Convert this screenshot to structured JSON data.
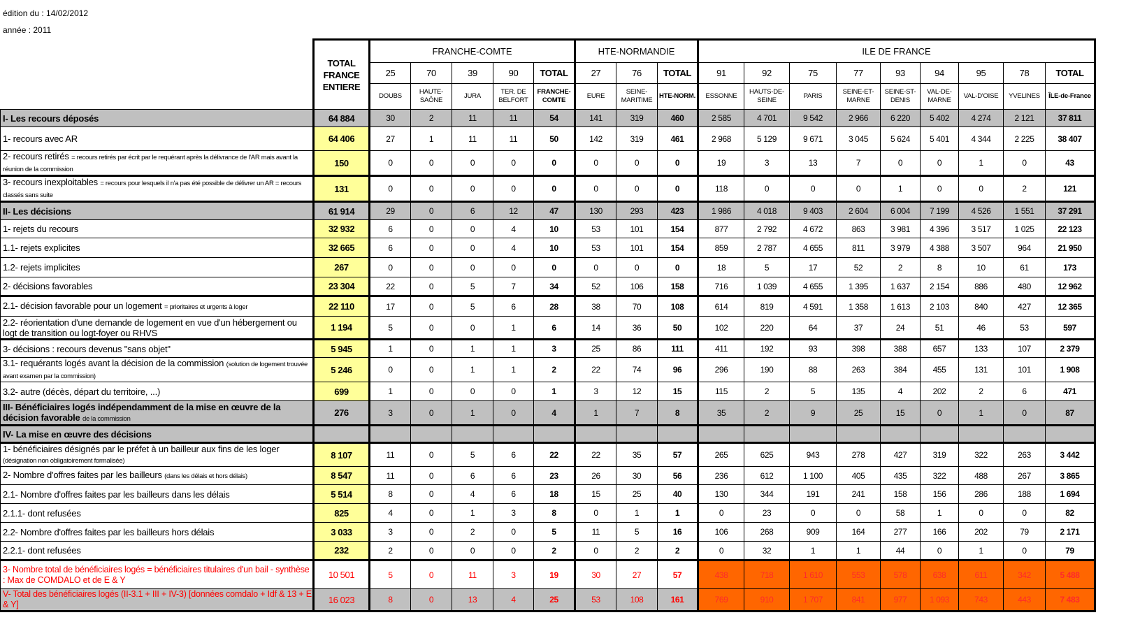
{
  "meta": {
    "edition": "édition du : 14/02/2012",
    "year": "année : 2011"
  },
  "header": {
    "total_label": "TOTAL FRANCE ENTIERE",
    "groups": [
      "FRANCHE-COMTE",
      "HTE-NORMANDIE",
      "ILE DE FRANCE"
    ],
    "codes": [
      "25",
      "70",
      "39",
      "90",
      "TOTAL",
      "27",
      "76",
      "TOTAL",
      "91",
      "92",
      "75",
      "77",
      "93",
      "94",
      "95",
      "78",
      "TOTAL"
    ],
    "names": [
      "DOUBS",
      "HAUTE-SAÔNE",
      "JURA",
      "TER. DE BELFORT",
      "FRANCHE-COMTE",
      "EURE",
      "SEINE-MARITIME",
      "HTE-NORM.",
      "ESSONNE",
      "HAUTS-DE-SEINE",
      "PARIS",
      "SEINE-ET-MARNE",
      "SEINE-ST-DENIS",
      "VAL-DE-MARNE",
      "VAL-D'OISE",
      "YVELINES",
      "ÎLE-de-France"
    ]
  },
  "colors": {
    "total_col": "#ffff99",
    "section": "#c0c0c0",
    "highlight": "#ff6600",
    "alert_text": "#ff0000"
  },
  "rows": [
    {
      "label": "I- Les recours déposés",
      "note": "",
      "style": "gray",
      "total": "64 884",
      "values": [
        "30",
        "2",
        "11",
        "11",
        "54",
        "141",
        "319",
        "460",
        "2 585",
        "4 701",
        "9 542",
        "2 966",
        "6 220",
        "5 402",
        "4 274",
        "2 121",
        "37 811"
      ]
    },
    {
      "label": "1- recours avec AR",
      "note": "",
      "style": "",
      "total": "64 406",
      "values": [
        "27",
        "1",
        "11",
        "11",
        "50",
        "142",
        "319",
        "461",
        "2 968",
        "5 129",
        "9 671",
        "3 045",
        "5 624",
        "5 401",
        "4 344",
        "2 225",
        "38 407"
      ]
    },
    {
      "label": "2- recours retirés",
      "note": "= recours retirés par écrit par le requérant après la délivrance de l'AR mais avant la réunion de la commission",
      "style": "",
      "total": "150",
      "values": [
        "0",
        "0",
        "0",
        "0",
        "0",
        "0",
        "0",
        "0",
        "19",
        "3",
        "13",
        "7",
        "0",
        "0",
        "1",
        "0",
        "43"
      ]
    },
    {
      "label": "3- recours inexploitables",
      "note": "= recours pour lesquels il n'a pas été possible de délivrer un AR = recours classés sans suite",
      "style": "thick",
      "total": "131",
      "values": [
        "0",
        "0",
        "0",
        "0",
        "0",
        "0",
        "0",
        "0",
        "118",
        "0",
        "0",
        "0",
        "1",
        "0",
        "0",
        "2",
        "121"
      ]
    },
    {
      "label": "II- Les décisions",
      "note": "",
      "style": "gray thick",
      "total": "61 914",
      "values": [
        "29",
        "0",
        "6",
        "12",
        "47",
        "130",
        "293",
        "423",
        "1 986",
        "4 018",
        "9 403",
        "2 604",
        "6 004",
        "7 199",
        "4 526",
        "1 551",
        "37 291"
      ]
    },
    {
      "label": "1- rejets du recours",
      "note": "",
      "style": "",
      "total": "32 932",
      "values": [
        "6",
        "0",
        "0",
        "4",
        "10",
        "53",
        "101",
        "154",
        "877",
        "2 792",
        "4 672",
        "863",
        "3 981",
        "4 396",
        "3 517",
        "1 025",
        "22 123"
      ]
    },
    {
      "label": " 1.1- rejets explicites",
      "note": "",
      "style": "",
      "total": "32 665",
      "values": [
        "6",
        "0",
        "0",
        "4",
        "10",
        "53",
        "101",
        "154",
        "859",
        "2 787",
        "4 655",
        "811",
        "3 979",
        "4 388",
        "3 507",
        "964",
        "21 950"
      ]
    },
    {
      "label": " 1.2- rejets implicites",
      "note": "",
      "style": "",
      "total": "267",
      "values": [
        "0",
        "0",
        "0",
        "0",
        "0",
        "0",
        "0",
        "0",
        "18",
        "5",
        "17",
        "52",
        "2",
        "8",
        "10",
        "61",
        "173"
      ]
    },
    {
      "label": "2- décisions favorables",
      "note": "",
      "style": "",
      "total": "23 304",
      "values": [
        "22",
        "0",
        "5",
        "7",
        "34",
        "52",
        "106",
        "158",
        "716",
        "1 039",
        "4 655",
        "1 395",
        "1 637",
        "2 154",
        "886",
        "480",
        "12 962"
      ]
    },
    {
      "label": "2.1- décision favorable pour un logement",
      "note": "= prioritaires et urgents à loger",
      "style": "thick",
      "total": "22 110",
      "values": [
        "17",
        "0",
        "5",
        "6",
        "28",
        "38",
        "70",
        "108",
        "614",
        "819",
        "4 591",
        "1 358",
        "1 613",
        "2 103",
        "840",
        "427",
        "12 365"
      ]
    },
    {
      "label": " 2.2- réorientation d'une demande de logement en vue d'un hébergement ou logt de transition ou logt-foyer ou RHVS",
      "note": "",
      "style": "",
      "total": "1 194",
      "values": [
        "5",
        "0",
        "0",
        "1",
        "6",
        "14",
        "36",
        "50",
        "102",
        "220",
        "64",
        "37",
        "24",
        "51",
        "46",
        "53",
        "597"
      ]
    },
    {
      "label": "3- décisions : recours devenus \"sans objet\"",
      "note": "",
      "style": "thick",
      "total": "5 945",
      "values": [
        "1",
        "0",
        "1",
        "1",
        "3",
        "25",
        "86",
        "111",
        "411",
        "192",
        "93",
        "398",
        "388",
        "657",
        "133",
        "107",
        "2 379"
      ]
    },
    {
      "label": " 3.1- requérants logés avant la décision de la commission",
      "note": "(solution de logement trouvée avant examen par la commission)",
      "style": "",
      "total": "5 246",
      "values": [
        "0",
        "0",
        "1",
        "1",
        "2",
        "22",
        "74",
        "96",
        "296",
        "190",
        "88",
        "263",
        "384",
        "455",
        "131",
        "101",
        "1 908"
      ]
    },
    {
      "label": " 3.2- autre (décès, départ du territoire, ...)",
      "note": "",
      "style": "",
      "total": "699",
      "values": [
        "1",
        "0",
        "0",
        "0",
        "1",
        "3",
        "12",
        "15",
        "115",
        "2",
        "5",
        "135",
        "4",
        "202",
        "2",
        "6",
        "471"
      ]
    },
    {
      "label": "III- Bénéficiaires logés indépendamment de la mise en œuvre de la décision favorable",
      "note": "de la commission",
      "style": "gray",
      "total": "276",
      "values": [
        "3",
        "0",
        "1",
        "0",
        "4",
        "1",
        "7",
        "8",
        "35",
        "2",
        "9",
        "25",
        "15",
        "0",
        "1",
        "0",
        "87"
      ]
    },
    {
      "label": "IV- La mise en œuvre des décisions",
      "note": "",
      "style": "gray thick",
      "total": "",
      "values": [
        "",
        "",
        "",
        "",
        "",
        "",
        "",
        "",
        "",
        "",
        "",
        "",
        "",
        "",
        "",
        "",
        ""
      ]
    },
    {
      "label": "1- bénéficiaires désignés par le préfet à un bailleur aux fins de les loger",
      "note": "(désignation non obligatoirement formalisée)",
      "style": "thick",
      "total": "8 107",
      "values": [
        "11",
        "0",
        "5",
        "6",
        "22",
        "22",
        "35",
        "57",
        "265",
        "625",
        "943",
        "278",
        "427",
        "319",
        "322",
        "263",
        "3 442"
      ]
    },
    {
      "label": "2- Nombre d'offres faites par les bailleurs",
      "note": "(dans les délais et hors délais)",
      "style": "",
      "total": "8 547",
      "values": [
        "11",
        "0",
        "6",
        "6",
        "23",
        "26",
        "30",
        "56",
        "236",
        "612",
        "1 100",
        "405",
        "435",
        "322",
        "488",
        "267",
        "3 865"
      ]
    },
    {
      "label": " 2.1- Nombre d'offres faites par les bailleurs dans les délais",
      "note": "",
      "style": "",
      "total": "5 514",
      "values": [
        "8",
        "0",
        "4",
        "6",
        "18",
        "15",
        "25",
        "40",
        "130",
        "344",
        "191",
        "241",
        "158",
        "156",
        "286",
        "188",
        "1 694"
      ]
    },
    {
      "label": "  2.1.1- dont refusées",
      "note": "",
      "style": "",
      "total": "825",
      "values": [
        "4",
        "0",
        "1",
        "3",
        "8",
        "0",
        "1",
        "1",
        "0",
        "23",
        "0",
        "0",
        "58",
        "1",
        "0",
        "0",
        "82"
      ]
    },
    {
      "label": " 2.2- Nombre d'offres faites par les bailleurs hors délais",
      "note": "",
      "style": "",
      "total": "3 033",
      "values": [
        "3",
        "0",
        "2",
        "0",
        "5",
        "11",
        "5",
        "16",
        "106",
        "268",
        "909",
        "164",
        "277",
        "166",
        "202",
        "79",
        "2 171"
      ]
    },
    {
      "label": "  2.2.1- dont refusées",
      "note": "",
      "style": "",
      "total": "232",
      "values": [
        "2",
        "0",
        "0",
        "0",
        "2",
        "0",
        "2",
        "2",
        "0",
        "32",
        "1",
        "1",
        "44",
        "0",
        "1",
        "0",
        "79"
      ]
    },
    {
      "label": "3- Nombre total de bénéficiaires logés = bénéficiaires titulaires d'un bail - synthèse : Max de COMDALO et de E & Y",
      "note": "",
      "style": "red thick",
      "total": "10 501",
      "values": [
        "5",
        "0",
        "11",
        "3",
        "19",
        "30",
        "27",
        "57",
        "438",
        "718",
        "1 610",
        "553",
        "578",
        "638",
        "611",
        "342",
        "5 488"
      ]
    },
    {
      "label": "V- Total des bénéficiaires logés (II-3.1 + III + IV-3) [données comdalo + Idf & 13 + E & Y]",
      "note": "",
      "style": "red gray last",
      "total": "16 023",
      "values": [
        "8",
        "0",
        "13",
        "4",
        "25",
        "53",
        "108",
        "161",
        "769",
        "910",
        "1 707",
        "841",
        "977",
        "1 093",
        "743",
        "443",
        "7 483"
      ]
    }
  ]
}
